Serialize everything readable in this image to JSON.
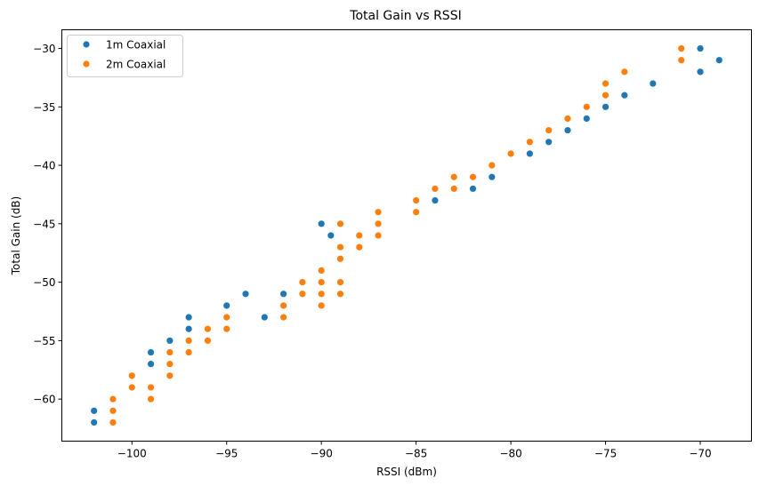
{
  "chart_data": {
    "type": "scatter",
    "title": "Total Gain vs RSSI",
    "xlabel": "RSSI (dBm)",
    "ylabel": "Total Gain (dB)",
    "xlim": [
      -103.7,
      -67.3
    ],
    "ylim": [
      -63.6,
      -28.4
    ],
    "xticks": [
      -100,
      -95,
      -90,
      -85,
      -80,
      -75,
      -70
    ],
    "yticks": [
      -60,
      -55,
      -50,
      -45,
      -40,
      -35,
      -30
    ],
    "xtick_labels": [
      "−100",
      "−95",
      "−90",
      "−85",
      "−80",
      "−75",
      "−70"
    ],
    "ytick_labels": [
      "−60",
      "−55",
      "−50",
      "−45",
      "−40",
      "−35",
      "−30"
    ],
    "grid": false,
    "legend_position": "top-left",
    "colors": {
      "1m Coaxial": "#1f77b4",
      "2m Coaxial": "#ff7f0e"
    },
    "series": [
      {
        "name": "1m Coaxial",
        "points": [
          [
            -102,
            -61
          ],
          [
            -102,
            -62
          ],
          [
            -99,
            -56
          ],
          [
            -99,
            -57
          ],
          [
            -98,
            -55
          ],
          [
            -97,
            -53
          ],
          [
            -97,
            -54
          ],
          [
            -95,
            -52
          ],
          [
            -94,
            -51
          ],
          [
            -93,
            -53
          ],
          [
            -92,
            -51
          ],
          [
            -90,
            -45
          ],
          [
            -89.5,
            -46
          ],
          [
            -84,
            -43
          ],
          [
            -82,
            -42
          ],
          [
            -81,
            -41
          ],
          [
            -79,
            -39
          ],
          [
            -78,
            -38
          ],
          [
            -77,
            -37
          ],
          [
            -76,
            -36
          ],
          [
            -75,
            -35
          ],
          [
            -74,
            -34
          ],
          [
            -72.5,
            -33
          ],
          [
            -70,
            -30
          ],
          [
            -70,
            -32
          ],
          [
            -69,
            -31
          ]
        ]
      },
      {
        "name": "2m Coaxial",
        "points": [
          [
            -101,
            -60
          ],
          [
            -101,
            -61
          ],
          [
            -101,
            -62
          ],
          [
            -100,
            -58
          ],
          [
            -100,
            -59
          ],
          [
            -99,
            -59
          ],
          [
            -99,
            -60
          ],
          [
            -98,
            -56
          ],
          [
            -98,
            -57
          ],
          [
            -98,
            -58
          ],
          [
            -97,
            -55
          ],
          [
            -97,
            -56
          ],
          [
            -96,
            -54
          ],
          [
            -96,
            -55
          ],
          [
            -95,
            -53
          ],
          [
            -95,
            -54
          ],
          [
            -92,
            -52
          ],
          [
            -92,
            -53
          ],
          [
            -91,
            -50
          ],
          [
            -91,
            -51
          ],
          [
            -90,
            -49
          ],
          [
            -90,
            -50
          ],
          [
            -90,
            -51
          ],
          [
            -90,
            -52
          ],
          [
            -89,
            -45
          ],
          [
            -89,
            -47
          ],
          [
            -89,
            -48
          ],
          [
            -89,
            -50
          ],
          [
            -89,
            -51
          ],
          [
            -88,
            -46
          ],
          [
            -88,
            -47
          ],
          [
            -87,
            -44
          ],
          [
            -87,
            -45
          ],
          [
            -87,
            -46
          ],
          [
            -85,
            -43
          ],
          [
            -85,
            -44
          ],
          [
            -84,
            -42
          ],
          [
            -83,
            -41
          ],
          [
            -83,
            -42
          ],
          [
            -82,
            -41
          ],
          [
            -81,
            -40
          ],
          [
            -80,
            -39
          ],
          [
            -79,
            -38
          ],
          [
            -78,
            -37
          ],
          [
            -77,
            -36
          ],
          [
            -76,
            -35
          ],
          [
            -75,
            -33
          ],
          [
            -75,
            -34
          ],
          [
            -74,
            -32
          ],
          [
            -71,
            -30
          ],
          [
            -71,
            -31
          ]
        ]
      }
    ]
  }
}
